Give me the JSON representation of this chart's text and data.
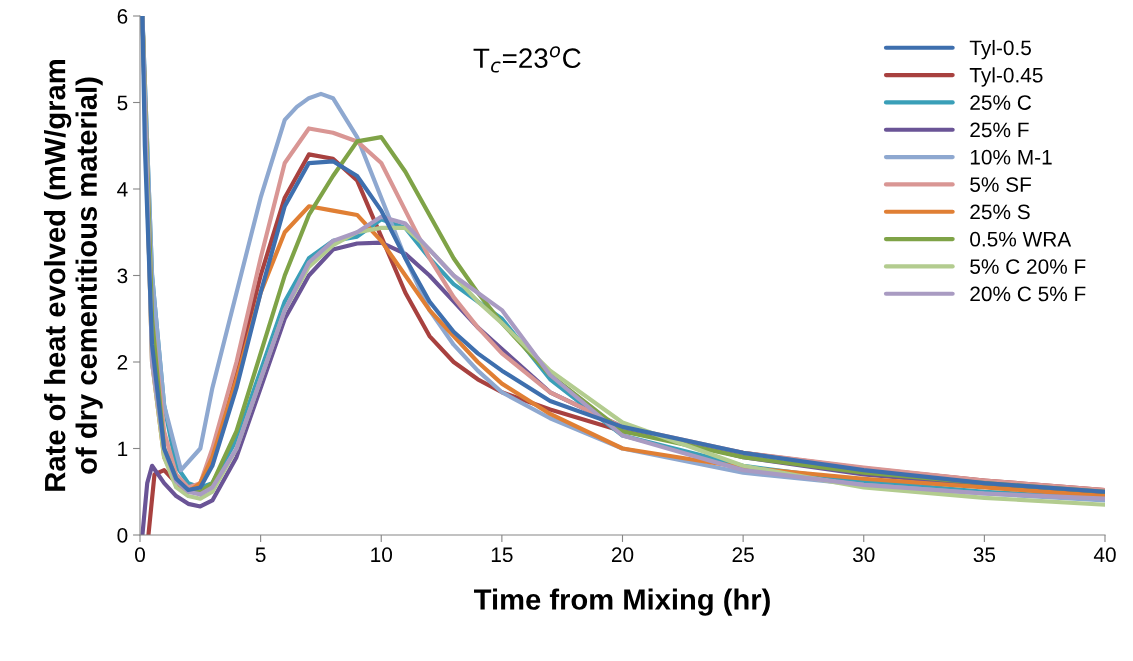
{
  "chart_data": {
    "type": "line",
    "xlabel": "Time from Mixing (hr)",
    "ylabel": "Rate of heat evolved (mW/gram\nof dry cementitious material)",
    "xlim": [
      0,
      40
    ],
    "ylim": [
      0,
      6
    ],
    "xticks": [
      0,
      5,
      10,
      15,
      20,
      25,
      30,
      35,
      40
    ],
    "yticks": [
      0,
      1,
      2,
      3,
      4,
      5,
      6
    ],
    "grid": false,
    "legend": "top right",
    "marker": "none",
    "annotations": [
      "T$_{c}$=23$^{o}$C"
    ],
    "series": [
      {
        "name": "Tyl-0.5",
        "color": "#3e6fae",
        "x": [
          0.1,
          0.2,
          0.5,
          1,
          1.5,
          2,
          2.5,
          3,
          4,
          5,
          6,
          7,
          8,
          9,
          10,
          11,
          12,
          13,
          14,
          15,
          17,
          20,
          25,
          30,
          35,
          40
        ],
        "values": [
          6,
          4.5,
          2.2,
          1.0,
          0.65,
          0.52,
          0.55,
          0.8,
          1.7,
          2.8,
          3.8,
          4.3,
          4.32,
          4.15,
          3.75,
          3.2,
          2.7,
          2.35,
          2.1,
          1.9,
          1.55,
          1.25,
          0.95,
          0.75,
          0.6,
          0.5
        ]
      },
      {
        "name": "Tyl-0.45",
        "color": "#a8413f",
        "x": [
          0.35,
          0.6,
          1,
          1.5,
          2,
          2.5,
          3,
          4,
          5,
          6,
          7,
          8,
          9,
          10,
          11,
          12,
          13,
          14,
          15,
          17,
          20,
          25,
          30,
          35,
          40
        ],
        "values": [
          0,
          0.7,
          0.75,
          0.6,
          0.5,
          0.6,
          0.9,
          1.9,
          3.0,
          3.9,
          4.4,
          4.35,
          4.1,
          3.45,
          2.8,
          2.3,
          2.0,
          1.8,
          1.65,
          1.45,
          1.2,
          0.95,
          0.77,
          0.63,
          0.52
        ]
      },
      {
        "name": "25% C",
        "color": "#3a9fb8",
        "x": [
          0.1,
          0.5,
          1,
          1.5,
          2,
          2.5,
          3,
          4,
          5,
          6,
          7,
          8,
          9,
          10,
          11,
          12,
          13,
          14,
          15,
          17,
          20,
          25,
          30,
          35,
          40
        ],
        "values": [
          6,
          3.0,
          1.5,
          0.8,
          0.6,
          0.55,
          0.6,
          1.1,
          1.9,
          2.7,
          3.2,
          3.4,
          3.45,
          3.65,
          3.55,
          3.2,
          2.9,
          2.7,
          2.5,
          1.8,
          1.15,
          0.8,
          0.62,
          0.5,
          0.42
        ]
      },
      {
        "name": "25% F",
        "color": "#6a5496",
        "x": [
          0.1,
          0.3,
          0.5,
          1,
          1.5,
          2,
          2.5,
          3,
          4,
          5,
          6,
          7,
          8,
          9,
          10,
          11,
          12,
          13,
          14,
          15,
          17,
          20,
          25,
          30,
          35,
          40
        ],
        "values": [
          0,
          0.6,
          0.8,
          0.6,
          0.45,
          0.36,
          0.33,
          0.4,
          0.9,
          1.7,
          2.5,
          3.0,
          3.3,
          3.37,
          3.38,
          3.25,
          3.0,
          2.7,
          2.4,
          2.15,
          1.65,
          1.25,
          0.9,
          0.7,
          0.58,
          0.48
        ]
      },
      {
        "name": "10% M-1",
        "color": "#8ea8d0",
        "x": [
          0.1,
          0.5,
          1,
          1.7,
          2.5,
          3,
          4,
          5,
          6,
          6.5,
          7,
          7.5,
          8,
          9,
          10,
          11,
          12,
          13,
          14,
          15,
          17,
          20,
          25,
          30,
          35,
          40
        ],
        "values": [
          6,
          3.0,
          1.5,
          0.75,
          1.0,
          1.7,
          2.8,
          3.9,
          4.8,
          4.95,
          5.05,
          5.1,
          5.05,
          4.6,
          3.9,
          3.2,
          2.6,
          2.2,
          1.9,
          1.65,
          1.35,
          1.0,
          0.72,
          0.58,
          0.48,
          0.4
        ]
      },
      {
        "name": "5% SF",
        "color": "#d99694",
        "x": [
          0.1,
          0.5,
          1,
          1.5,
          2,
          2.5,
          3,
          4,
          5,
          6,
          7,
          8,
          9,
          10,
          11,
          12,
          13,
          14,
          15,
          17,
          20,
          25,
          30,
          35,
          40
        ],
        "values": [
          6,
          2.5,
          1.2,
          0.7,
          0.55,
          0.6,
          1.0,
          2.0,
          3.2,
          4.3,
          4.7,
          4.65,
          4.55,
          4.3,
          3.75,
          3.2,
          2.75,
          2.4,
          2.1,
          1.65,
          1.25,
          0.95,
          0.78,
          0.63,
          0.52
        ]
      },
      {
        "name": "25% S",
        "color": "#e07f34",
        "x": [
          0.1,
          0.5,
          1,
          1.5,
          2,
          2.5,
          3,
          4,
          5,
          6,
          7,
          8,
          9,
          10,
          11,
          12,
          13,
          14,
          15,
          17,
          20,
          25,
          30,
          35,
          40
        ],
        "values": [
          6,
          2.0,
          0.9,
          0.6,
          0.5,
          0.6,
          0.9,
          1.8,
          2.8,
          3.5,
          3.8,
          3.75,
          3.7,
          3.4,
          3.0,
          2.6,
          2.3,
          2.0,
          1.75,
          1.4,
          1.0,
          0.78,
          0.65,
          0.55,
          0.45
        ]
      },
      {
        "name": "0.5% WRA",
        "color": "#7fa347",
        "x": [
          0.1,
          0.5,
          1,
          1.5,
          2,
          2.5,
          3,
          4,
          5,
          6,
          7,
          8,
          9,
          10,
          11,
          12,
          13,
          14,
          15,
          17,
          20,
          25,
          30,
          35,
          40
        ],
        "values": [
          6,
          2.5,
          1.0,
          0.65,
          0.5,
          0.5,
          0.6,
          1.2,
          2.1,
          3.0,
          3.7,
          4.15,
          4.55,
          4.6,
          4.2,
          3.7,
          3.2,
          2.8,
          2.45,
          1.85,
          1.2,
          0.9,
          0.72,
          0.6,
          0.5
        ]
      },
      {
        "name": "5% C 20% F",
        "color": "#b3cc8f",
        "x": [
          0.1,
          0.5,
          1,
          1.5,
          2,
          2.5,
          3,
          4,
          5,
          6,
          7,
          8,
          9,
          10,
          11,
          12,
          13,
          14,
          15,
          17,
          20,
          25,
          30,
          35,
          40
        ],
        "values": [
          6,
          2.0,
          0.9,
          0.55,
          0.45,
          0.42,
          0.5,
          1.0,
          1.8,
          2.6,
          3.1,
          3.35,
          3.5,
          3.55,
          3.55,
          3.3,
          3.0,
          2.7,
          2.45,
          1.9,
          1.3,
          0.8,
          0.55,
          0.43,
          0.35
        ]
      },
      {
        "name": "20% C 5% F",
        "color": "#a99bc2",
        "x": [
          0.1,
          0.5,
          1,
          1.5,
          2,
          2.5,
          3,
          4,
          5,
          6,
          7,
          8,
          9,
          10,
          11,
          12,
          13,
          14,
          15,
          17,
          20,
          25,
          30,
          35,
          40
        ],
        "values": [
          6,
          2.0,
          1.0,
          0.62,
          0.5,
          0.47,
          0.55,
          1.0,
          1.8,
          2.6,
          3.15,
          3.4,
          3.5,
          3.68,
          3.6,
          3.3,
          3.0,
          2.8,
          2.6,
          1.85,
          1.15,
          0.75,
          0.58,
          0.48,
          0.42
        ]
      }
    ]
  }
}
